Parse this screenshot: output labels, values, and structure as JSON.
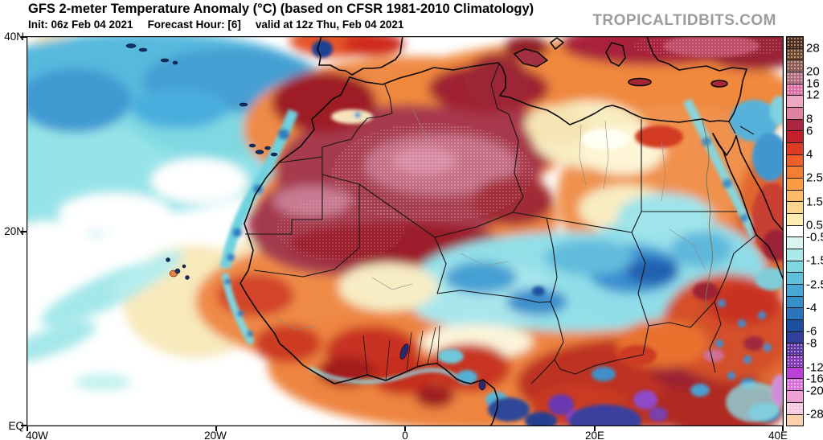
{
  "header": {
    "title": "GFS 2-meter Temperature Anomaly (°C) (based on CFSR 1981-2010 Climatology)",
    "init": "Init: 06z Feb 04 2021",
    "forecast_hour": "Forecast Hour: [6]",
    "valid": "valid at 12z Thu, Feb 04 2021",
    "watermark": "TROPICALTIDBITS.COM"
  },
  "map": {
    "lat_labels": [
      "40N",
      "20N",
      "EQ"
    ],
    "lon_labels": [
      "40W",
      "20W",
      "0",
      "20E",
      "40E"
    ]
  },
  "colorbar": {
    "cells": [
      {
        "color": "#4f2d18",
        "stipple": true
      },
      {
        "color": "#6f4627",
        "stipple": true
      },
      {
        "color": "#8c5a52",
        "stipple": true
      },
      {
        "color": "#b06d80",
        "stipple": true
      },
      {
        "color": "#d96fa5",
        "stipple": true
      },
      {
        "color": "#eda7c3",
        "stipple": false
      },
      {
        "color": "#e083a0",
        "stipple": false
      },
      {
        "color": "#ad2440",
        "stipple": false
      },
      {
        "color": "#c51f2c",
        "stipple": false
      },
      {
        "color": "#dd3b24",
        "stipple": false
      },
      {
        "color": "#ee5f2a",
        "stipple": false
      },
      {
        "color": "#f67e33",
        "stipple": false
      },
      {
        "color": "#fb9c44",
        "stipple": false
      },
      {
        "color": "#fdba68",
        "stipple": false
      },
      {
        "color": "#fdd58c",
        "stipple": false
      },
      {
        "color": "#feecb0",
        "stipple": false
      },
      {
        "color": "#ffffff",
        "stipple": false
      },
      {
        "color": "#d9f6f1",
        "stipple": false
      },
      {
        "color": "#abe9e9",
        "stipple": false
      },
      {
        "color": "#7ed8e2",
        "stipple": false
      },
      {
        "color": "#5fc1dc",
        "stipple": false
      },
      {
        "color": "#46a9d5",
        "stipple": false
      },
      {
        "color": "#3390c9",
        "stipple": false
      },
      {
        "color": "#2a74bc",
        "stipple": false
      },
      {
        "color": "#1d4fa0",
        "stipple": false
      },
      {
        "color": "#30409b",
        "stipple": false
      },
      {
        "color": "#5b36a2",
        "stipple": true
      },
      {
        "color": "#8239b8",
        "stipple": true
      },
      {
        "color": "#bb40d8",
        "stipple": false
      },
      {
        "color": "#d96fd8",
        "stipple": true
      },
      {
        "color": "#eda0d3",
        "stipple": false
      },
      {
        "color": "#f6c6de",
        "stipple": true
      },
      {
        "color": "#fcd0a9",
        "stipple": false
      }
    ],
    "ticks": [
      {
        "label": "28",
        "boundary": 1
      },
      {
        "label": "20",
        "boundary": 3
      },
      {
        "label": "16",
        "boundary": 4
      },
      {
        "label": "12",
        "boundary": 5
      },
      {
        "label": "8",
        "boundary": 7
      },
      {
        "label": "6",
        "boundary": 8
      },
      {
        "label": "4",
        "boundary": 10
      },
      {
        "label": "2.5",
        "boundary": 12
      },
      {
        "label": "1.5",
        "boundary": 14
      },
      {
        "label": "0.5",
        "boundary": 16
      },
      {
        "label": "-0.5",
        "boundary": 17
      },
      {
        "label": "-1.5",
        "boundary": 19
      },
      {
        "label": "-2.5",
        "boundary": 21
      },
      {
        "label": "-4",
        "boundary": 23
      },
      {
        "label": "-6",
        "boundary": 25
      },
      {
        "label": "-8",
        "boundary": 26
      },
      {
        "label": "-12",
        "boundary": 28
      },
      {
        "label": "-16",
        "boundary": 29
      },
      {
        "label": "-20",
        "boundary": 30
      },
      {
        "label": "-28",
        "boundary": 32
      }
    ]
  }
}
